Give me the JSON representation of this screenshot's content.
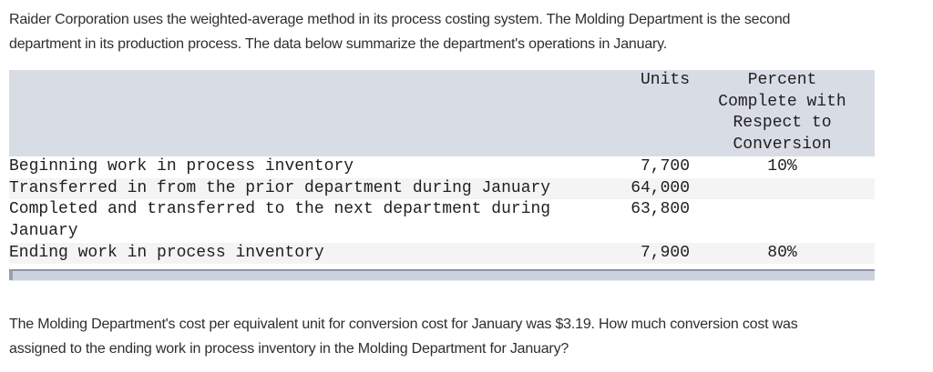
{
  "intro": {
    "lines": [
      "Raider Corporation uses the weighted-average method in its process costing system. The Molding Department is the second",
      "department in its production process. The data below summarize the department's operations in January."
    ]
  },
  "table": {
    "columns": {
      "label_header": "",
      "units_header": "Units",
      "percent_header_lines": [
        "Percent",
        "Complete with",
        "Respect to",
        "Conversion"
      ]
    },
    "rows": [
      {
        "label": "Beginning work in process inventory",
        "units": "7,700",
        "percent": "10%"
      },
      {
        "label": "Transferred in from the prior department during January",
        "units": "64,000",
        "percent": ""
      },
      {
        "label": "Completed and transferred to the next department during January",
        "units": "63,800",
        "percent": ""
      },
      {
        "label": "Ending work in process inventory",
        "units": "7,900",
        "percent": "80%"
      }
    ]
  },
  "question": {
    "lines": [
      "The Molding Department's cost per equivalent unit for conversion cost for January was $3.19. How much conversion cost was",
      "assigned to the ending work in process inventory in the Molding Department for January?"
    ]
  },
  "colors": {
    "header_background": "#d8dce5",
    "row_stripe": "#f4f4f5",
    "scrollbar_track": "#cdd3de",
    "scrollbar_border": "#8d94a3",
    "scrollbar_thumb": "#99a1af",
    "text": "#2e2e2e"
  }
}
